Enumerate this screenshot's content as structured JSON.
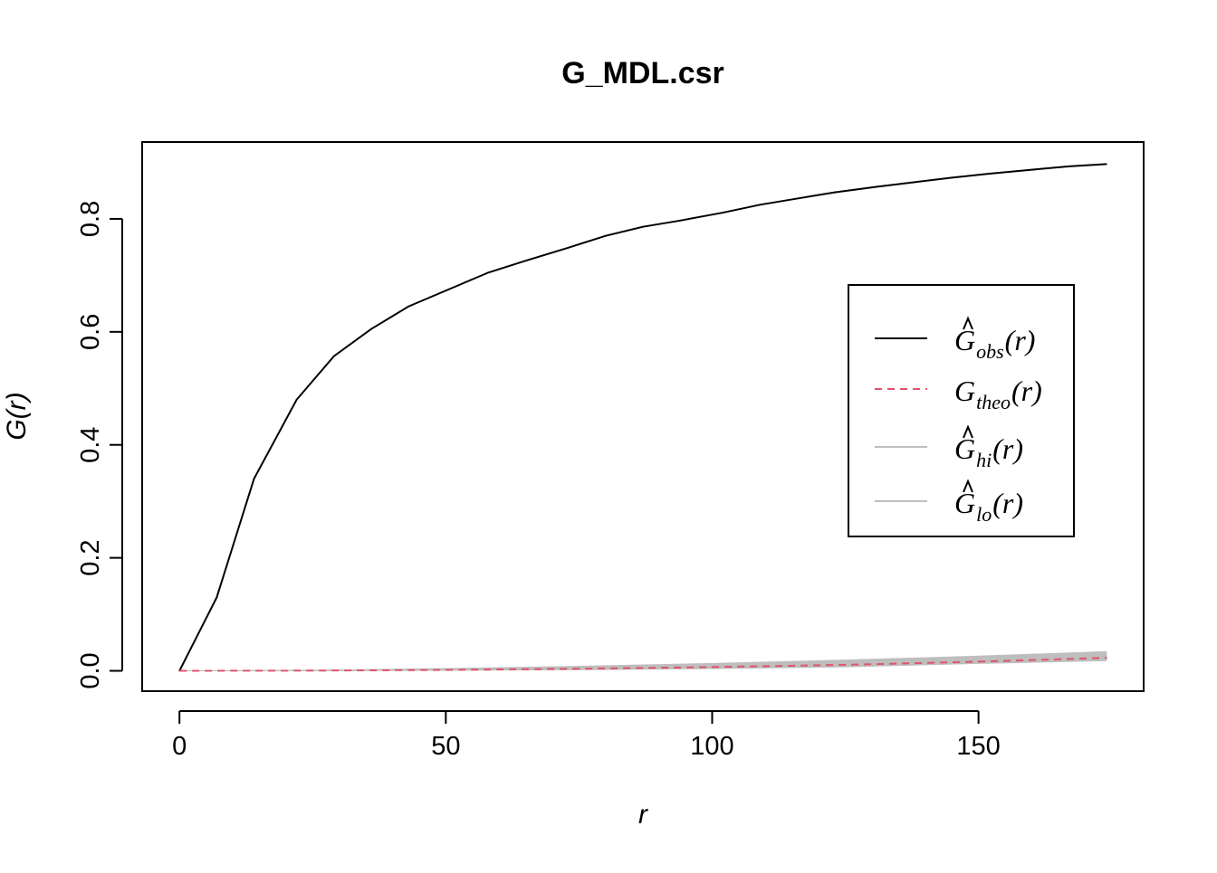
{
  "chart_data": {
    "type": "line",
    "title": "G_MDL.csr",
    "xlabel": "r",
    "ylabel": "G(r)",
    "xlim": [
      -7,
      181
    ],
    "ylim": [
      -0.036,
      0.936
    ],
    "xticks": [
      0,
      50,
      100,
      150
    ],
    "xtick_labels": [
      "0",
      "50",
      "100",
      "150"
    ],
    "yticks": [
      0.0,
      0.2,
      0.4,
      0.6,
      0.8
    ],
    "ytick_labels": [
      "0.0",
      "0.2",
      "0.4",
      "0.6",
      "0.8"
    ],
    "grid": false,
    "legend_position": "right",
    "envelope": {
      "x": [
        0,
        25,
        50,
        75,
        100,
        125,
        150,
        174
      ],
      "lo": [
        0,
        0.0,
        0.001,
        0.002,
        0.004,
        0.007,
        0.013,
        0.018
      ],
      "hi": [
        0,
        0.001,
        0.004,
        0.008,
        0.013,
        0.019,
        0.026,
        0.034
      ]
    },
    "series": [
      {
        "key": "obs",
        "color": "#000000",
        "dash": "solid",
        "x": [
          0,
          7,
          14,
          22,
          29,
          36,
          43,
          51,
          58,
          65,
          73,
          80,
          87,
          94,
          102,
          109,
          116,
          123,
          131,
          138,
          145,
          152,
          160,
          167,
          174
        ],
        "y": [
          0,
          0.13,
          0.34,
          0.48,
          0.557,
          0.605,
          0.645,
          0.677,
          0.705,
          0.726,
          0.749,
          0.77,
          0.786,
          0.797,
          0.811,
          0.825,
          0.836,
          0.847,
          0.857,
          0.865,
          0.873,
          0.88,
          0.887,
          0.893,
          0.897
        ]
      },
      {
        "key": "theo",
        "color": "#df536b",
        "dash": "dashed",
        "x": [
          0,
          25,
          50,
          75,
          100,
          125,
          150,
          174
        ],
        "y": [
          0,
          0.0004,
          0.0016,
          0.0036,
          0.0066,
          0.0106,
          0.0162,
          0.023
        ]
      }
    ],
    "legend": [
      {
        "key": "obs",
        "base": "G",
        "sub": "obs",
        "arg": "(r)",
        "hat": true,
        "color": "#000000",
        "line": "solid"
      },
      {
        "key": "theo",
        "base": "G",
        "sub": "theo",
        "arg": "(r)",
        "hat": false,
        "color": "#df536b",
        "line": "dashed"
      },
      {
        "key": "hi",
        "base": "G",
        "sub": "hi",
        "arg": "(r)",
        "hat": true,
        "color": "#bebebe",
        "line": "solid"
      },
      {
        "key": "lo",
        "base": "G",
        "sub": "lo",
        "arg": "(r)",
        "hat": true,
        "color": "#bebebe",
        "line": "solid"
      }
    ]
  }
}
